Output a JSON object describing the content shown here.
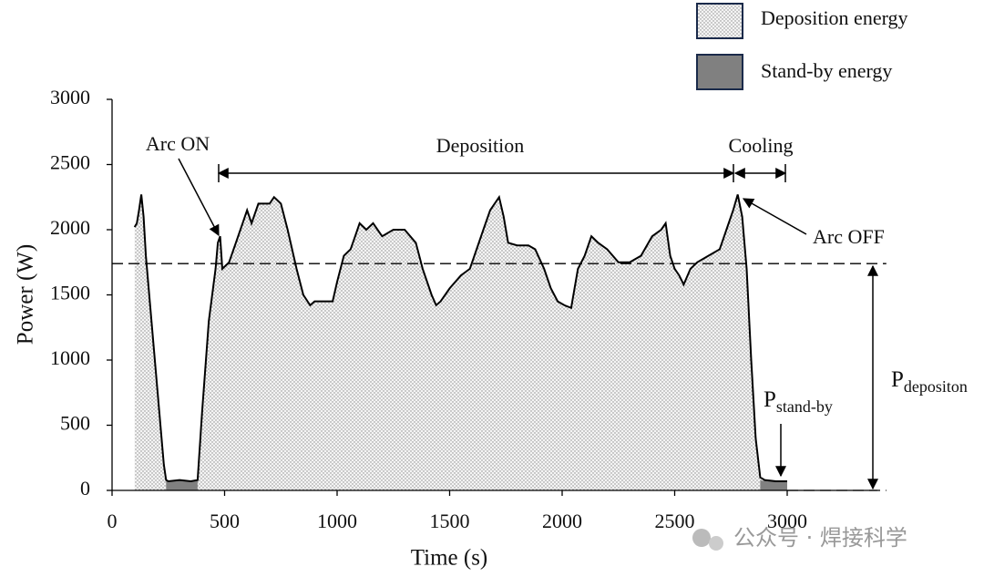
{
  "chart_data": {
    "type": "line",
    "x_label": "Time (s)",
    "y_label": "Power (W)",
    "xlim": [
      0,
      3400
    ],
    "ylim": [
      0,
      3000
    ],
    "xticks": [
      0,
      500,
      1000,
      1500,
      2000,
      2500,
      3000
    ],
    "yticks": [
      0,
      500,
      1000,
      1500,
      2000,
      2500,
      3000
    ],
    "color": "#000000",
    "x": [
      100,
      110,
      120,
      130,
      140,
      150,
      200,
      230,
      240,
      250,
      300,
      350,
      380,
      400,
      430,
      460,
      470,
      480,
      490,
      520,
      550,
      580,
      600,
      620,
      650,
      700,
      720,
      750,
      780,
      820,
      850,
      880,
      900,
      950,
      980,
      1000,
      1030,
      1060,
      1080,
      1100,
      1130,
      1160,
      1200,
      1250,
      1300,
      1350,
      1380,
      1420,
      1440,
      1460,
      1500,
      1550,
      1590,
      1620,
      1650,
      1680,
      1700,
      1720,
      1740,
      1760,
      1800,
      1850,
      1880,
      1920,
      1950,
      1980,
      2010,
      2040,
      2070,
      2100,
      2130,
      2160,
      2200,
      2250,
      2300,
      2350,
      2400,
      2440,
      2460,
      2480,
      2500,
      2520,
      2540,
      2570,
      2600,
      2650,
      2700,
      2730,
      2760,
      2780,
      2800,
      2820,
      2840,
      2860,
      2880,
      2900,
      2950,
      3000
    ],
    "values": [
      2020,
      2050,
      2150,
      2270,
      2100,
      1800,
      800,
      200,
      80,
      70,
      80,
      70,
      80,
      600,
      1300,
      1700,
      1900,
      1950,
      1700,
      1750,
      1900,
      2050,
      2150,
      2050,
      2200,
      2200,
      2250,
      2200,
      2000,
      1700,
      1500,
      1420,
      1450,
      1450,
      1450,
      1600,
      1800,
      1850,
      1950,
      2050,
      2000,
      2050,
      1950,
      2000,
      2000,
      1900,
      1700,
      1500,
      1420,
      1450,
      1550,
      1650,
      1700,
      1850,
      2000,
      2150,
      2200,
      2250,
      2100,
      1900,
      1880,
      1880,
      1850,
      1700,
      1550,
      1450,
      1420,
      1400,
      1700,
      1800,
      1950,
      1900,
      1850,
      1750,
      1750,
      1800,
      1950,
      2000,
      2050,
      1800,
      1700,
      1650,
      1580,
      1700,
      1750,
      1800,
      1850,
      2000,
      2150,
      2270,
      2100,
      1700,
      1000,
      400,
      100,
      80,
      70,
      70
    ],
    "areas": [
      {
        "name": "Deposition energy",
        "color": "#f2f2f2"
      },
      {
        "name": "Stand-by energy",
        "color": "#808080"
      }
    ],
    "standby_ranges": [
      [
        240,
        380
      ],
      [
        2880,
        3000
      ]
    ],
    "standby_level": 75,
    "deposition_level": 1740,
    "annotations": [
      "Arc ON",
      "Deposition",
      "Cooling",
      "Arc OFF"
    ],
    "p_standby": {
      "symbol": "P",
      "subscript": "stand-by"
    },
    "p_deposition": {
      "symbol": "P",
      "subscript": "depositon"
    },
    "watermark": "公众号 · 焊接科学"
  }
}
